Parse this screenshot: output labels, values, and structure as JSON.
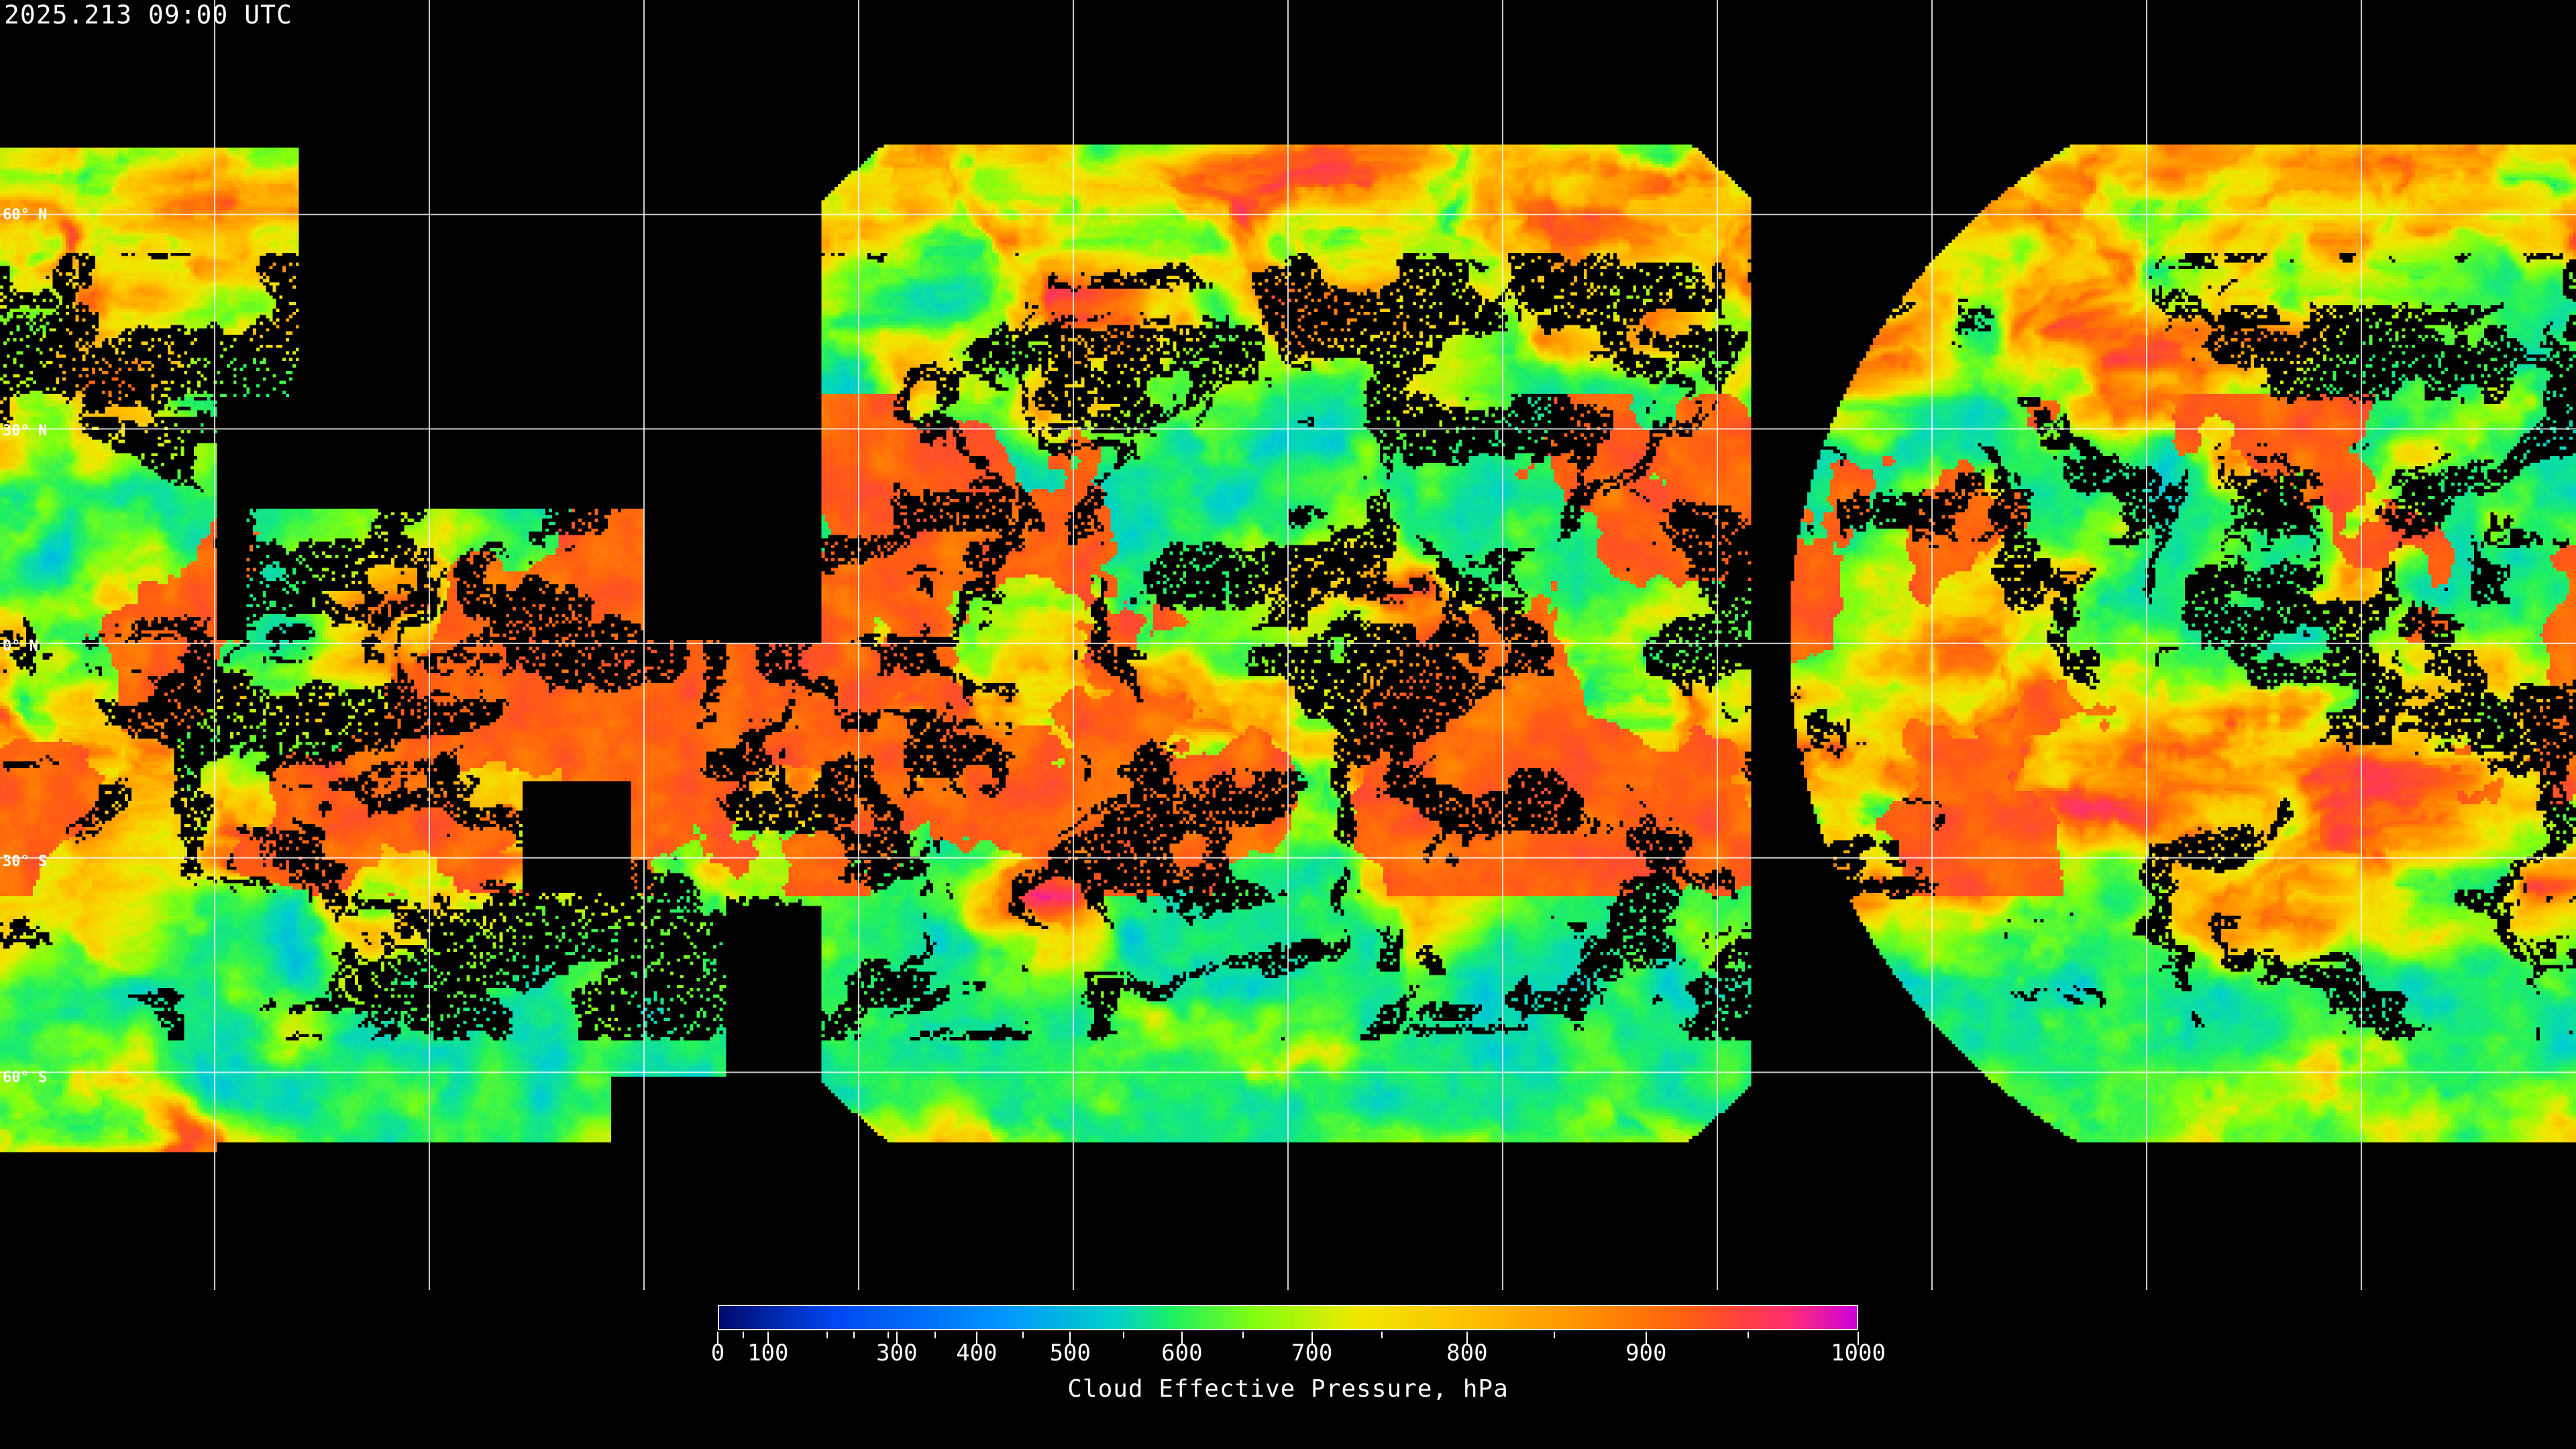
{
  "title": "2025.213 09:00 UTC",
  "map": {
    "projection": "equirectangular",
    "graticule_step_deg": 30,
    "lat_labels": [
      "60° N",
      "30° N",
      "0° N",
      "30° S",
      "60° S"
    ],
    "lat_values": [
      60,
      30,
      0,
      -30,
      -60
    ],
    "no_data_color": "#000000",
    "gridline_color": "#ffffff"
  },
  "colorbar": {
    "label": "Cloud Effective Pressure, hPa",
    "range": [
      0,
      1000
    ],
    "tick_labels": [
      "0",
      "100",
      "300",
      "400",
      "500",
      "600",
      "700",
      "800",
      "900",
      "1000"
    ],
    "colors": [
      "#000a6e",
      "#0046f0",
      "#0096ff",
      "#00d2c8",
      "#20f060",
      "#80ff10",
      "#f0e800",
      "#ffc000",
      "#ff9000",
      "#ff6010",
      "#ff4040",
      "#ff3070",
      "#cc00dd"
    ]
  }
}
